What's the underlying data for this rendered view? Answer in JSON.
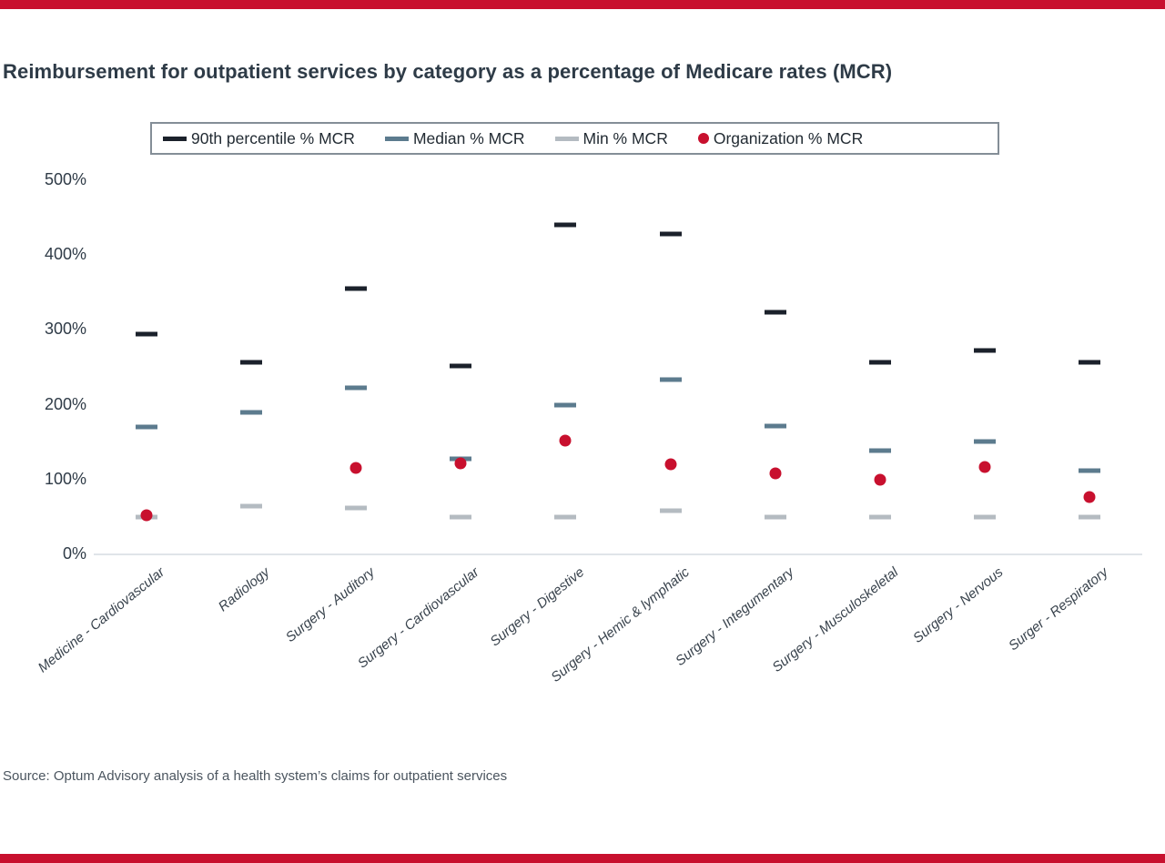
{
  "page": {
    "accent_bar_color": "#c8102e",
    "title": "Reimbursement for outpatient services by category as a percentage of Medicare rates (MCR)",
    "source": "Source: Optum Advisory analysis of a health system’s claims for outpatient services"
  },
  "chart_data": {
    "type": "scatter",
    "title": "Reimbursement for outpatient services by category as a percentage of Medicare rates (MCR)",
    "xlabel": "",
    "ylabel": "",
    "ylim": [
      0,
      500
    ],
    "grid": false,
    "legend_position": "top-center",
    "y_ticks": [
      {
        "label": "0%",
        "value": 0
      },
      {
        "label": "100%",
        "value": 100
      },
      {
        "label": "200%",
        "value": 200
      },
      {
        "label": "300%",
        "value": 300
      },
      {
        "label": "400%",
        "value": 400
      },
      {
        "label": "500%",
        "value": 500
      }
    ],
    "categories": [
      "Medicine - Cardiovascular",
      "Radiology",
      "Surgery - Auditory",
      "Surgery - Cardiovascular",
      "Surgery - Digestive",
      "Surgery - Hemic & lymphatic",
      "Surgery - Integumentary",
      "Surgery - Musculoskeletal",
      "Surgery - Nervous",
      "Surger - Respiratory"
    ],
    "series": [
      {
        "name": "90th percentile % MCR",
        "marker": "dash",
        "color": "#1b212b",
        "values": [
          295,
          257,
          355,
          252,
          440,
          428,
          324,
          257,
          273,
          257
        ]
      },
      {
        "name": "Median % MCR",
        "marker": "dash",
        "color": "#5c7b8e",
        "values": [
          170,
          190,
          223,
          128,
          200,
          233,
          172,
          139,
          151,
          112
        ]
      },
      {
        "name": "Min % MCR",
        "marker": "dash",
        "color": "#b4bbc1",
        "values": [
          50,
          65,
          62,
          50,
          50,
          58,
          50,
          50,
          50,
          50
        ]
      },
      {
        "name": "Organization % MCR",
        "marker": "dot",
        "color": "#c8102e",
        "values": [
          52,
          null,
          115,
          122,
          152,
          121,
          108,
          100,
          117,
          77
        ]
      }
    ]
  }
}
